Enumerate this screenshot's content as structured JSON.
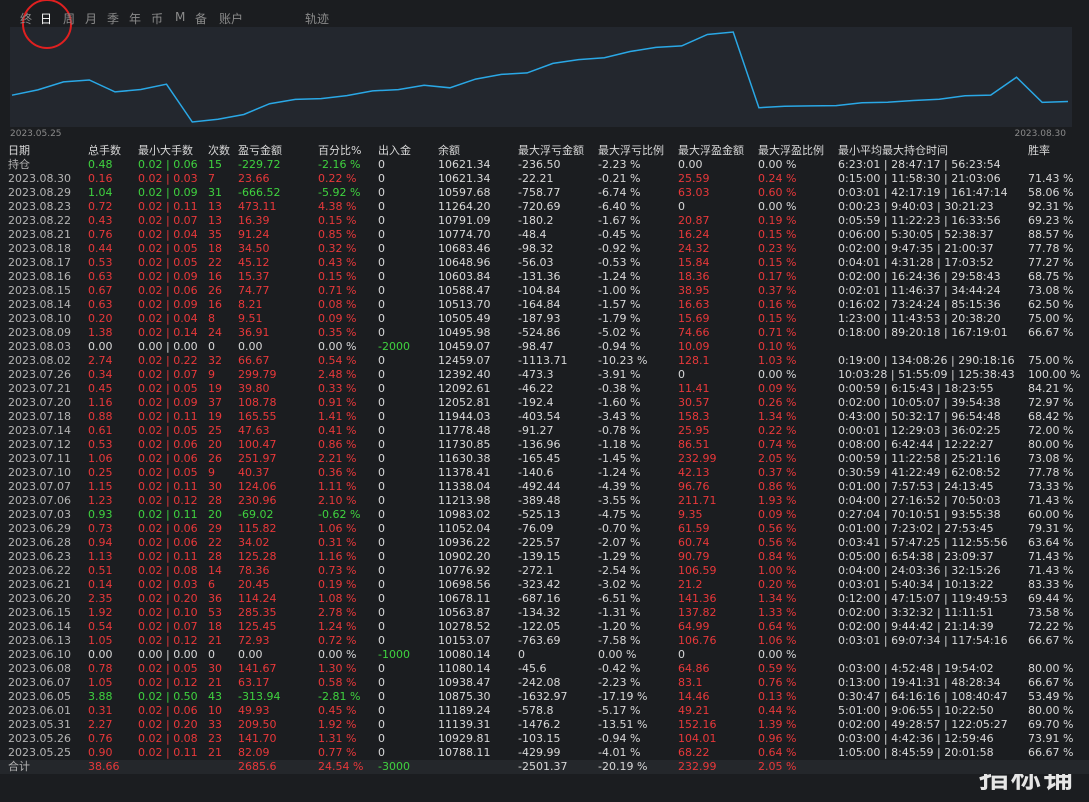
{
  "toolbar": {
    "tabs": [
      "终",
      "日",
      "周",
      "月",
      "季",
      "年",
      "币",
      "M",
      "备",
      "账户",
      "轨迹"
    ]
  },
  "curve": {
    "start_label": "2023.05.25",
    "end_label": "2023.08.30"
  },
  "table": {
    "columns": [
      "日期",
      "总手数",
      "最小大手数",
      "次数",
      "盈亏金额",
      "百分比%",
      "出入金",
      "余额",
      "最大浮亏金额",
      "最大浮亏比例",
      "最大浮盈金额",
      "最大浮盈比例",
      "最小平均最大持仓时间",
      "胜率"
    ],
    "rows": [
      [
        "持仓",
        "0.48",
        "0.02 | 0.06",
        "15",
        "-229.72",
        "-2.16 %",
        "0",
        "10621.34",
        "-236.50",
        "-2.23 %",
        "0.00",
        "0.00 %",
        "6:23:01 | 28:47:17 | 56:23:54",
        null
      ],
      [
        "2023.08.30",
        "0.16",
        "0.02 | 0.03",
        "7",
        "23.66",
        "0.22 %",
        "0",
        "10621.34",
        "-22.21",
        "-0.21 %",
        "25.59",
        "0.24 %",
        "0:15:00 | 11:58:30 | 21:03:06",
        "71.43 %"
      ],
      [
        "2023.08.29",
        "1.04",
        "0.02 | 0.09",
        "31",
        "-666.52",
        "-5.92 %",
        "0",
        "10597.68",
        "-758.77",
        "-6.74 %",
        "63.03",
        "0.60 %",
        "0:03:01 | 42:17:19 | 161:47:14",
        "58.06 %"
      ],
      [
        "2023.08.23",
        "0.72",
        "0.02 | 0.11",
        "13",
        "473.11",
        "4.38 %",
        "0",
        "11264.20",
        "-720.69",
        "-6.40 %",
        "0",
        "0.00 %",
        "0:00:23 | 9:40:03 | 30:21:23",
        "92.31 %"
      ],
      [
        "2023.08.22",
        "0.43",
        "0.02 | 0.07",
        "13",
        "16.39",
        "0.15 %",
        "0",
        "10791.09",
        "-180.2",
        "-1.67 %",
        "20.87",
        "0.19 %",
        "0:05:59 | 11:22:23 | 16:33:56",
        "69.23 %"
      ],
      [
        "2023.08.21",
        "0.76",
        "0.02 | 0.04",
        "35",
        "91.24",
        "0.85 %",
        "0",
        "10774.70",
        "-48.4",
        "-0.45 %",
        "16.24",
        "0.15 %",
        "0:06:00 | 5:30:05 | 52:38:37",
        "88.57 %"
      ],
      [
        "2023.08.18",
        "0.44",
        "0.02 | 0.05",
        "18",
        "34.50",
        "0.32 %",
        "0",
        "10683.46",
        "-98.32",
        "-0.92 %",
        "24.32",
        "0.23 %",
        "0:02:00 | 9:47:35 | 21:00:37",
        "77.78 %"
      ],
      [
        "2023.08.17",
        "0.53",
        "0.02 | 0.05",
        "22",
        "45.12",
        "0.43 %",
        "0",
        "10648.96",
        "-56.03",
        "-0.53 %",
        "15.84",
        "0.15 %",
        "0:04:01 | 4:31:28 | 17:03:52",
        "77.27 %"
      ],
      [
        "2023.08.16",
        "0.63",
        "0.02 | 0.09",
        "16",
        "15.37",
        "0.15 %",
        "0",
        "10603.84",
        "-131.36",
        "-1.24 %",
        "18.36",
        "0.17 %",
        "0:02:00 | 16:24:36 | 29:58:43",
        "68.75 %"
      ],
      [
        "2023.08.15",
        "0.67",
        "0.02 | 0.06",
        "26",
        "74.77",
        "0.71 %",
        "0",
        "10588.47",
        "-104.84",
        "-1.00 %",
        "38.95",
        "0.37 %",
        "0:02:01 | 11:46:37 | 34:44:24",
        "73.08 %"
      ],
      [
        "2023.08.14",
        "0.63",
        "0.02 | 0.09",
        "16",
        "8.21",
        "0.08 %",
        "0",
        "10513.70",
        "-164.84",
        "-1.57 %",
        "16.63",
        "0.16 %",
        "0:16:02 | 73:24:24 | 85:15:36",
        "62.50 %"
      ],
      [
        "2023.08.10",
        "0.20",
        "0.02 | 0.04",
        "8",
        "9.51",
        "0.09 %",
        "0",
        "10505.49",
        "-187.93",
        "-1.79 %",
        "15.69",
        "0.15 %",
        "1:23:00 | 11:43:53 | 20:38:20",
        "75.00 %"
      ],
      [
        "2023.08.09",
        "1.38",
        "0.02 | 0.14",
        "24",
        "36.91",
        "0.35 %",
        "0",
        "10495.98",
        "-524.86",
        "-5.02 %",
        "74.66",
        "0.71 %",
        "0:18:00 | 89:20:18 | 167:19:01",
        "66.67 %"
      ],
      [
        "2023.08.03",
        "0.00",
        "0.00 | 0.00",
        "0",
        "0.00",
        "0.00 %",
        "-2000",
        "10459.07",
        "-98.47",
        "-0.94 %",
        "10.09",
        "0.10 %",
        null,
        null
      ],
      [
        "2023.08.02",
        "2.74",
        "0.02 | 0.22",
        "32",
        "66.67",
        "0.54 %",
        "0",
        "12459.07",
        "-1113.71",
        "-10.23 %",
        "128.1",
        "1.03 %",
        "0:19:00 | 134:08:26 | 290:18:16",
        "75.00 %"
      ],
      [
        "2023.07.26",
        "0.34",
        "0.02 | 0.07",
        "9",
        "299.79",
        "2.48 %",
        "0",
        "12392.40",
        "-473.3",
        "-3.91 %",
        "0",
        "0.00 %",
        "10:03:28 | 51:55:09 | 125:38:43",
        "100.00 %"
      ],
      [
        "2023.07.21",
        "0.45",
        "0.02 | 0.05",
        "19",
        "39.80",
        "0.33 %",
        "0",
        "12092.61",
        "-46.22",
        "-0.38 %",
        "11.41",
        "0.09 %",
        "0:00:59 | 6:15:43 | 18:23:55",
        "84.21 %"
      ],
      [
        "2023.07.20",
        "1.16",
        "0.02 | 0.09",
        "37",
        "108.78",
        "0.91 %",
        "0",
        "12052.81",
        "-192.4",
        "-1.60 %",
        "30.57",
        "0.26 %",
        "0:02:00 | 10:05:07 | 39:54:38",
        "72.97 %"
      ],
      [
        "2023.07.18",
        "0.88",
        "0.02 | 0.11",
        "19",
        "165.55",
        "1.41 %",
        "0",
        "11944.03",
        "-403.54",
        "-3.43 %",
        "158.3",
        "1.34 %",
        "0:43:00 | 50:32:17 | 96:54:48",
        "68.42 %"
      ],
      [
        "2023.07.14",
        "0.61",
        "0.02 | 0.05",
        "25",
        "47.63",
        "0.41 %",
        "0",
        "11778.48",
        "-91.27",
        "-0.78 %",
        "25.95",
        "0.22 %",
        "0:00:01 | 12:29:03 | 36:02:25",
        "72.00 %"
      ],
      [
        "2023.07.12",
        "0.53",
        "0.02 | 0.06",
        "20",
        "100.47",
        "0.86 %",
        "0",
        "11730.85",
        "-136.96",
        "-1.18 %",
        "86.51",
        "0.74 %",
        "0:08:00 | 6:42:44 | 12:22:27",
        "80.00 %"
      ],
      [
        "2023.07.11",
        "1.06",
        "0.02 | 0.06",
        "26",
        "251.97",
        "2.21 %",
        "0",
        "11630.38",
        "-165.45",
        "-1.45 %",
        "232.99",
        "2.05 %",
        "0:00:59 | 11:22:58 | 25:21:16",
        "73.08 %"
      ],
      [
        "2023.07.10",
        "0.25",
        "0.02 | 0.05",
        "9",
        "40.37",
        "0.36 %",
        "0",
        "11378.41",
        "-140.6",
        "-1.24 %",
        "42.13",
        "0.37 %",
        "0:30:59 | 41:22:49 | 62:08:52",
        "77.78 %"
      ],
      [
        "2023.07.07",
        "1.15",
        "0.02 | 0.11",
        "30",
        "124.06",
        "1.11 %",
        "0",
        "11338.04",
        "-492.44",
        "-4.39 %",
        "96.76",
        "0.86 %",
        "0:01:00 | 7:57:53 | 24:13:45",
        "73.33 %"
      ],
      [
        "2023.07.06",
        "1.23",
        "0.02 | 0.12",
        "28",
        "230.96",
        "2.10 %",
        "0",
        "11213.98",
        "-389.48",
        "-3.55 %",
        "211.71",
        "1.93 %",
        "0:04:00 | 27:16:52 | 70:50:03",
        "71.43 %"
      ],
      [
        "2023.07.03",
        "0.93",
        "0.02 | 0.11",
        "20",
        "-69.02",
        "-0.62 %",
        "0",
        "10983.02",
        "-525.13",
        "-4.75 %",
        "9.35",
        "0.09 %",
        "0:27:04 | 70:10:51 | 93:55:38",
        "60.00 %"
      ],
      [
        "2023.06.29",
        "0.73",
        "0.02 | 0.06",
        "29",
        "115.82",
        "1.06 %",
        "0",
        "11052.04",
        "-76.09",
        "-0.70 %",
        "61.59",
        "0.56 %",
        "0:01:00 | 7:23:02 | 27:53:45",
        "79.31 %"
      ],
      [
        "2023.06.28",
        "0.94",
        "0.02 | 0.06",
        "22",
        "34.02",
        "0.31 %",
        "0",
        "10936.22",
        "-225.57",
        "-2.07 %",
        "60.74",
        "0.56 %",
        "0:03:41 | 57:47:25 | 112:55:56",
        "63.64 %"
      ],
      [
        "2023.06.23",
        "1.13",
        "0.02 | 0.11",
        "28",
        "125.28",
        "1.16 %",
        "0",
        "10902.20",
        "-139.15",
        "-1.29 %",
        "90.79",
        "0.84 %",
        "0:05:00 | 6:54:38 | 23:09:37",
        "71.43 %"
      ],
      [
        "2023.06.22",
        "0.51",
        "0.02 | 0.08",
        "14",
        "78.36",
        "0.73 %",
        "0",
        "10776.92",
        "-272.1",
        "-2.54 %",
        "106.59",
        "1.00 %",
        "0:04:00 | 24:03:36 | 32:15:26",
        "71.43 %"
      ],
      [
        "2023.06.21",
        "0.14",
        "0.02 | 0.03",
        "6",
        "20.45",
        "0.19 %",
        "0",
        "10698.56",
        "-323.42",
        "-3.02 %",
        "21.2",
        "0.20 %",
        "0:03:01 | 5:40:34 | 10:13:22",
        "83.33 %"
      ],
      [
        "2023.06.20",
        "2.35",
        "0.02 | 0.20",
        "36",
        "114.24",
        "1.08 %",
        "0",
        "10678.11",
        "-687.16",
        "-6.51 %",
        "141.36",
        "1.34 %",
        "0:12:00 | 47:15:07 | 119:49:53",
        "69.44 %"
      ],
      [
        "2023.06.15",
        "1.92",
        "0.02 | 0.10",
        "53",
        "285.35",
        "2.78 %",
        "0",
        "10563.87",
        "-134.32",
        "-1.31 %",
        "137.82",
        "1.33 %",
        "0:02:00 | 3:32:32 | 11:11:51",
        "73.58 %"
      ],
      [
        "2023.06.14",
        "0.54",
        "0.02 | 0.07",
        "18",
        "125.45",
        "1.24 %",
        "0",
        "10278.52",
        "-122.05",
        "-1.20 %",
        "64.99",
        "0.64 %",
        "0:02:00 | 9:44:42 | 21:14:39",
        "72.22 %"
      ],
      [
        "2023.06.13",
        "1.05",
        "0.02 | 0.12",
        "21",
        "72.93",
        "0.72 %",
        "0",
        "10153.07",
        "-763.69",
        "-7.58 %",
        "106.76",
        "1.06 %",
        "0:03:01 | 69:07:34 | 117:54:16",
        "66.67 %"
      ],
      [
        "2023.06.10",
        "0.00",
        "0.00 | 0.00",
        "0",
        "0.00",
        "0.00 %",
        "-1000",
        "10080.14",
        "0",
        "0.00 %",
        "0",
        "0.00 %",
        null,
        null
      ],
      [
        "2023.06.08",
        "0.78",
        "0.02 | 0.05",
        "30",
        "141.67",
        "1.30 %",
        "0",
        "11080.14",
        "-45.6",
        "-0.42 %",
        "64.86",
        "0.59 %",
        "0:03:00 | 4:52:48 | 19:54:02",
        "80.00 %"
      ],
      [
        "2023.06.07",
        "1.05",
        "0.02 | 0.12",
        "21",
        "63.17",
        "0.58 %",
        "0",
        "10938.47",
        "-242.08",
        "-2.23 %",
        "83.1",
        "0.76 %",
        "0:13:00 | 19:41:31 | 48:28:34",
        "66.67 %"
      ],
      [
        "2023.06.05",
        "3.88",
        "0.02 | 0.50",
        "43",
        "-313.94",
        "-2.81 %",
        "0",
        "10875.30",
        "-1632.97",
        "-17.19 %",
        "14.46",
        "0.13 %",
        "0:30:47 | 64:16:16 | 108:40:47",
        "53.49 %"
      ],
      [
        "2023.06.01",
        "0.31",
        "0.02 | 0.06",
        "10",
        "49.93",
        "0.45 %",
        "0",
        "11189.24",
        "-578.8",
        "-5.17 %",
        "49.21",
        "0.44 %",
        "5:01:00 | 9:06:55 | 10:22:50",
        "80.00 %"
      ],
      [
        "2023.05.31",
        "2.27",
        "0.02 | 0.20",
        "33",
        "209.50",
        "1.92 %",
        "0",
        "11139.31",
        "-1476.2",
        "-13.51 %",
        "152.16",
        "1.39 %",
        "0:02:00 | 49:28:57 | 122:05:27",
        "69.70 %"
      ],
      [
        "2023.05.26",
        "0.76",
        "0.02 | 0.08",
        "23",
        "141.70",
        "1.31 %",
        "0",
        "10929.81",
        "-103.15",
        "-0.94 %",
        "104.01",
        "0.96 %",
        "0:03:00 | 4:42:36 | 12:59:46",
        "73.91 %"
      ],
      [
        "2023.05.25",
        "0.90",
        "0.02 | 0.11",
        "21",
        "82.09",
        "0.77 %",
        "0",
        "10788.11",
        "-429.99",
        "-4.01 %",
        "68.22",
        "0.64 %",
        "1:05:00 | 8:45:59 | 20:01:58",
        "66.67 %"
      ],
      [
        "合计",
        "38.66",
        null,
        null,
        "2685.6",
        "24.54 %",
        "-3000",
        null,
        "-2501.37",
        "-20.19 %",
        "232.99",
        "2.05 %",
        null,
        null
      ]
    ]
  },
  "watermark": "指标铺"
}
